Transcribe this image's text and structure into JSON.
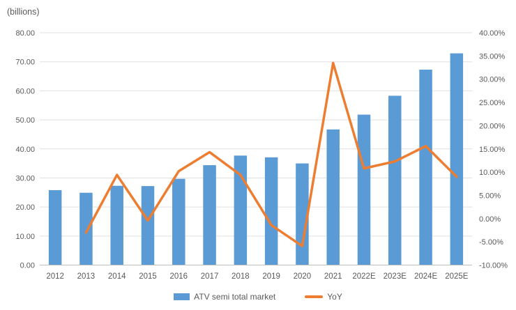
{
  "chart_data": {
    "type": "combo-bar-line",
    "title": "",
    "units_label": "(billions)",
    "categories": [
      "2012",
      "2013",
      "2014",
      "2015",
      "2016",
      "2017",
      "2018",
      "2019",
      "2020",
      "2021",
      "2022E",
      "2023E",
      "2024E",
      "2025E"
    ],
    "series": [
      {
        "name": "ATV semi total market",
        "type": "bar",
        "axis": "left",
        "color": "#5B9BD5",
        "values": [
          25.8,
          24.9,
          27.3,
          27.2,
          29.7,
          34.4,
          37.7,
          37.1,
          35.0,
          46.7,
          51.8,
          58.3,
          67.3,
          72.9
        ]
      },
      {
        "name": "YoY",
        "type": "line",
        "axis": "right",
        "color": "#ED7D31",
        "values": [
          null,
          -3.0,
          9.4,
          -0.4,
          10.2,
          14.3,
          9.4,
          -1.4,
          -5.9,
          33.5,
          10.8,
          12.3,
          15.6,
          9.0
        ]
      }
    ],
    "left_axis": {
      "min": 0,
      "max": 80,
      "step": 10,
      "tick_labels": [
        "80.00",
        "70.00",
        "60.00",
        "50.00",
        "40.00",
        "30.00",
        "20.00",
        "10.00",
        "0.00"
      ]
    },
    "right_axis": {
      "min": -10,
      "max": 40,
      "step": 5,
      "tick_labels": [
        "40.00%",
        "35.00%",
        "30.00%",
        "25.00%",
        "20.00%",
        "15.00%",
        "10.00%",
        "5.00%",
        "0.00%",
        "-5.00%",
        "-10.00%"
      ]
    },
    "legend": {
      "position": "bottom",
      "items": [
        "ATV semi total market",
        "YoY"
      ]
    },
    "grid": {
      "horizontal": true,
      "color": "#E0E0E0",
      "axis_line_color": "#BFBFBF"
    },
    "text_color": "#595959",
    "background": "#FFFFFF"
  }
}
